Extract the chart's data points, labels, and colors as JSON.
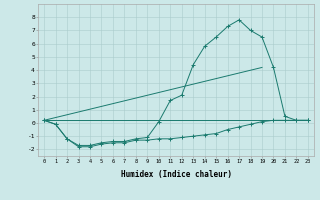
{
  "xlabel": "Humidex (Indice chaleur)",
  "ylabel": "",
  "background_color": "#cce8e8",
  "grid_color": "#aacccc",
  "line_color": "#1a7a6e",
  "xlim": [
    -0.5,
    23.5
  ],
  "ylim": [
    -2.5,
    9.0
  ],
  "yticks": [
    -2,
    -1,
    0,
    1,
    2,
    3,
    4,
    5,
    6,
    7,
    8
  ],
  "xticks": [
    0,
    1,
    2,
    3,
    4,
    5,
    6,
    7,
    8,
    9,
    10,
    11,
    12,
    13,
    14,
    15,
    16,
    17,
    18,
    19,
    20,
    21,
    22,
    23
  ],
  "line1_x": [
    0,
    1,
    2,
    3,
    4,
    5,
    6,
    7,
    8,
    9,
    10,
    11,
    12,
    13,
    14,
    15,
    16,
    17,
    18,
    19,
    20,
    21,
    22,
    23
  ],
  "line1_y": [
    0.2,
    -0.1,
    -1.2,
    -1.8,
    -1.8,
    -1.6,
    -1.5,
    -1.5,
    -1.3,
    -1.3,
    -1.2,
    -1.2,
    -1.1,
    -1.0,
    -0.9,
    -0.8,
    -0.5,
    -0.3,
    -0.1,
    0.1,
    0.2,
    0.2,
    0.2,
    0.2
  ],
  "line2_x": [
    0,
    1,
    2,
    3,
    4,
    5,
    6,
    7,
    8,
    9,
    10,
    11,
    12,
    13,
    14,
    15,
    16,
    17,
    18,
    19,
    20,
    21,
    22,
    23
  ],
  "line2_y": [
    0.2,
    -0.1,
    -1.2,
    -1.7,
    -1.7,
    -1.5,
    -1.4,
    -1.4,
    -1.2,
    -1.1,
    0.1,
    1.7,
    2.1,
    4.4,
    5.8,
    6.5,
    7.3,
    7.8,
    7.0,
    6.5,
    4.2,
    0.5,
    0.2,
    0.2
  ],
  "line3_x": [
    0,
    23
  ],
  "line3_y": [
    0.2,
    0.2
  ],
  "line4_x": [
    0,
    19
  ],
  "line4_y": [
    0.2,
    4.2
  ]
}
